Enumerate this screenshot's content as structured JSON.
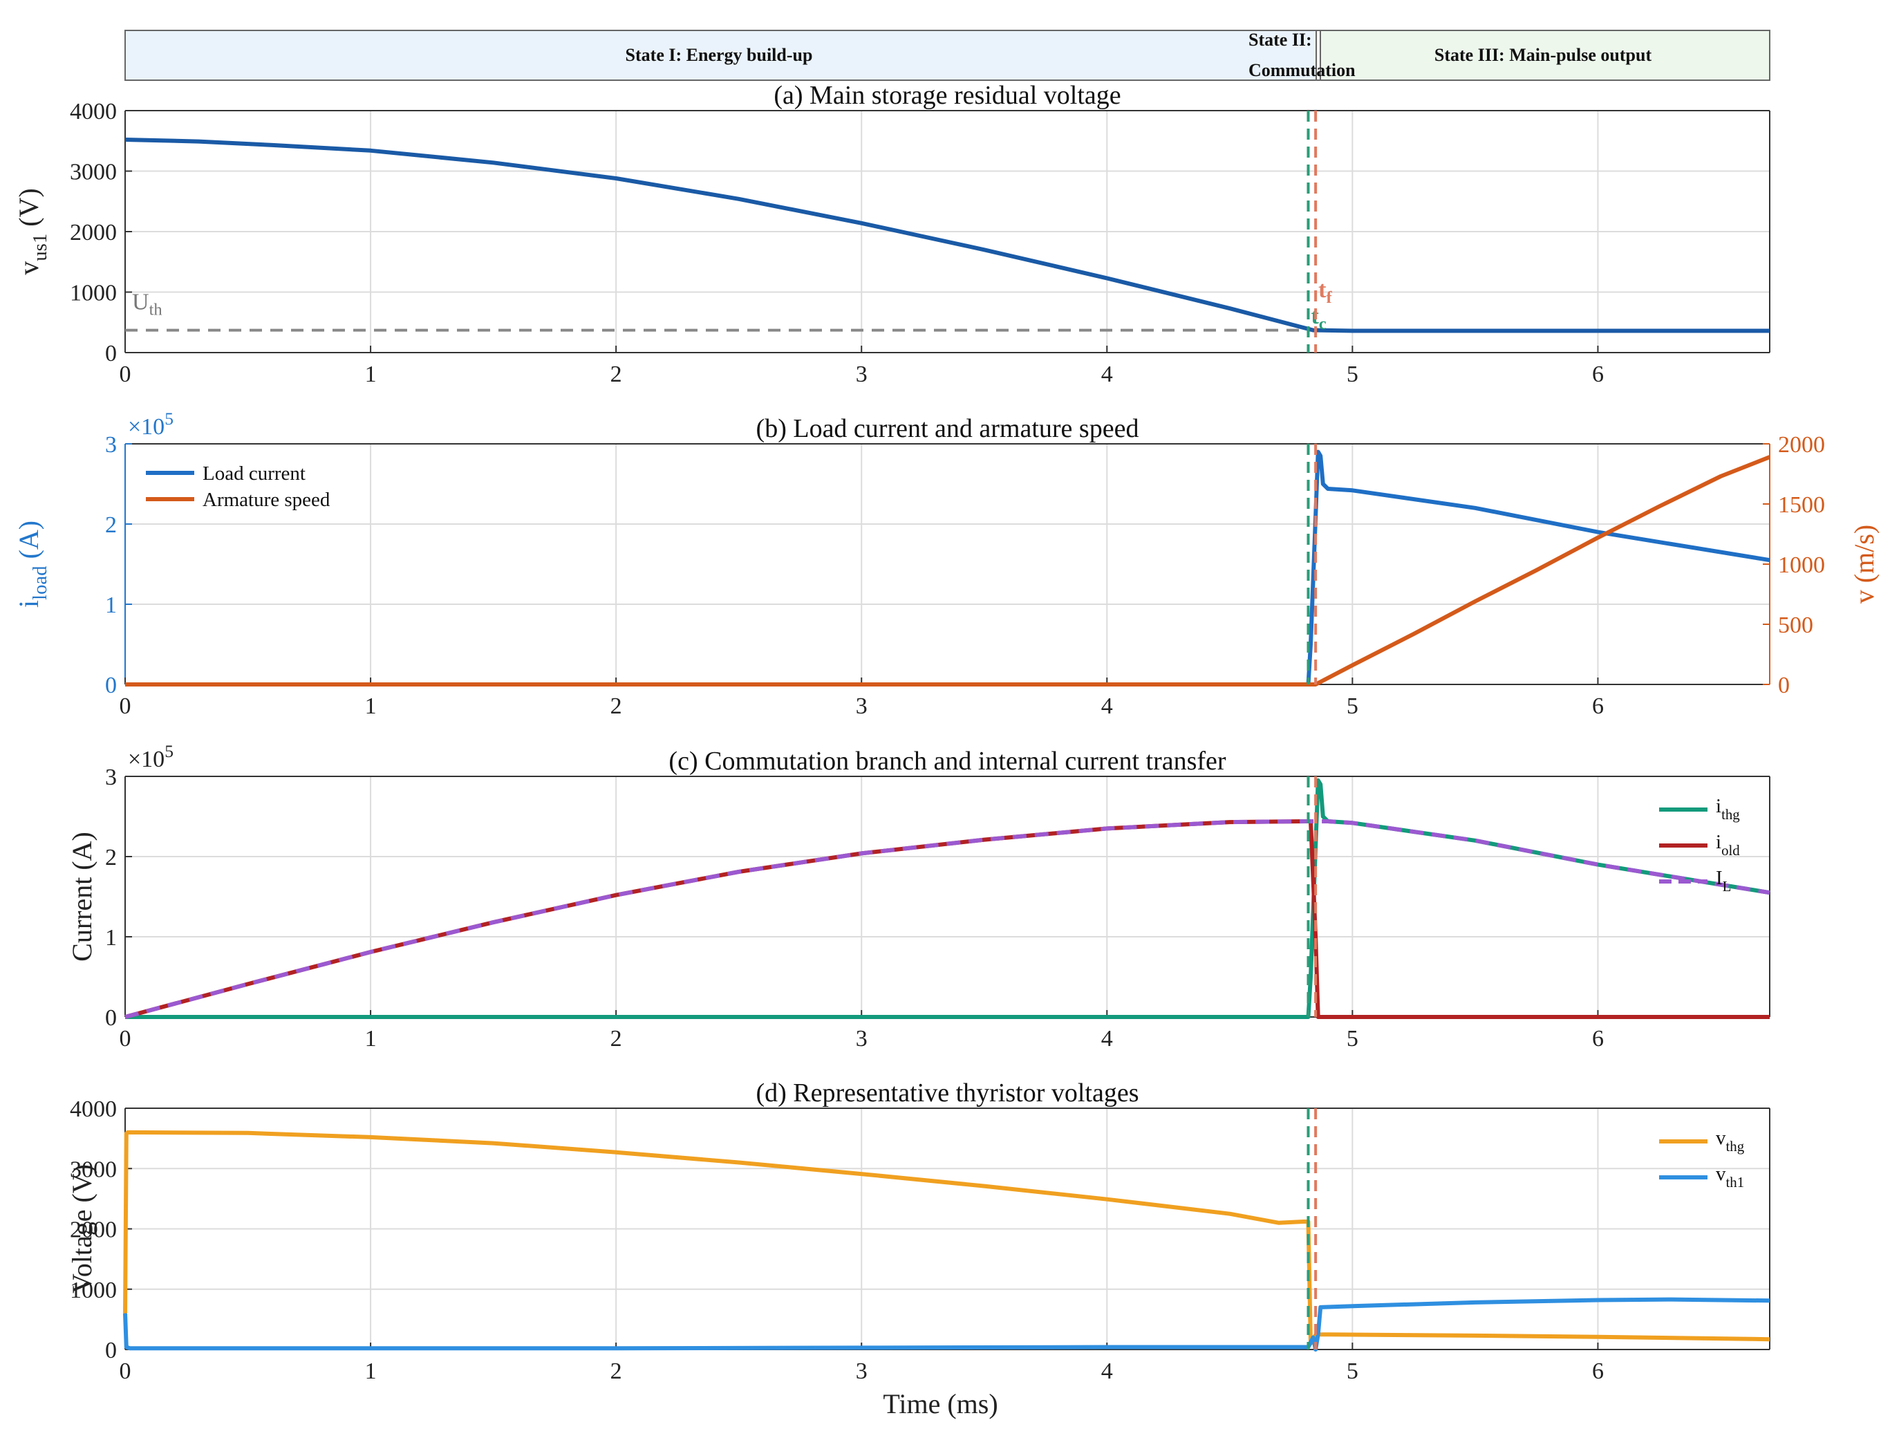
{
  "chart_data": [
    {
      "type": "line",
      "title": "(a) Main storage residual voltage",
      "xlabel": "",
      "ylabel": "v_us1 (V)",
      "ylabel_main": "v",
      "ylabel_sub": "us1",
      "ylabel_unit": " (V)",
      "xlim": [
        0,
        6.7
      ],
      "ylim": [
        0,
        4000
      ],
      "xticks": [
        "0",
        "1",
        "2",
        "3",
        "4",
        "5",
        "6"
      ],
      "yticks": [
        "0",
        "1000",
        "2000",
        "3000",
        "4000"
      ],
      "grid": true,
      "series": [
        {
          "color": "#1a5aa6",
          "x": [
            0,
            0.3,
            0.6,
            1.0,
            1.5,
            2.0,
            2.5,
            3.0,
            3.5,
            4.0,
            4.5,
            4.84,
            5.0,
            5.5,
            6.0,
            6.7
          ],
          "y": [
            3520,
            3490,
            3430,
            3340,
            3140,
            2880,
            2540,
            2140,
            1700,
            1230,
            730,
            370,
            360,
            360,
            360,
            360
          ]
        }
      ],
      "threshold": {
        "label": "U",
        "label_sub": "th",
        "value": 370,
        "color": "#888888"
      },
      "markers": [
        {
          "label": "t",
          "label_sub": "c",
          "x": 4.82,
          "color": "#2a9d78"
        },
        {
          "label": "t",
          "label_sub": "f",
          "x": 4.85,
          "color": "#e07a5f"
        }
      ]
    },
    {
      "type": "line",
      "title": "(b) Load current and armature speed",
      "xlabel": "",
      "ylabel": "i_load (A)",
      "ylabel_main": "i",
      "ylabel_sub": "load",
      "ylabel_unit": " (A)",
      "y2label": "v (m/s)",
      "xlim": [
        0,
        6.7
      ],
      "ylim": [
        0,
        3
      ],
      "y2lim": [
        0,
        2000
      ],
      "y_exponent_base": "×10",
      "y_exponent_power": "5",
      "xticks": [
        "0",
        "1",
        "2",
        "3",
        "4",
        "5",
        "6"
      ],
      "yticks": [
        "0",
        "1",
        "2",
        "3"
      ],
      "y2ticks": [
        "0",
        "500",
        "1000",
        "1500",
        "2000"
      ],
      "grid": true,
      "legend_position": "top-left",
      "left_axis_color": "#2277cc",
      "right_axis_color": "#d45a1a",
      "series": [
        {
          "name": "Load current",
          "color": "#1f6fc5",
          "axis": "left",
          "x": [
            0,
            4.82,
            4.83,
            4.86,
            4.87,
            4.88,
            4.9,
            5.0,
            5.5,
            6.0,
            6.7
          ],
          "y": [
            0,
            0,
            0.5,
            2.9,
            2.85,
            2.5,
            2.44,
            2.42,
            2.2,
            1.9,
            1.55
          ]
        },
        {
          "name": "Armature speed",
          "color": "#d45a1a",
          "axis": "right",
          "x": [
            0,
            4.85,
            5.0,
            5.25,
            5.5,
            5.75,
            6.0,
            6.25,
            6.5,
            6.7
          ],
          "y": [
            0,
            0,
            160,
            420,
            690,
            950,
            1220,
            1480,
            1730,
            1890
          ]
        }
      ],
      "markers": [
        {
          "x": 4.82,
          "color": "#2a9d78"
        },
        {
          "x": 4.85,
          "color": "#e07a5f"
        }
      ]
    },
    {
      "type": "line",
      "title": "(c) Commutation branch and internal current transfer",
      "xlabel": "",
      "ylabel": "Current (A)",
      "xlim": [
        0,
        6.7
      ],
      "ylim": [
        0,
        3
      ],
      "y_exponent_base": "×10",
      "y_exponent_power": "5",
      "xticks": [
        "0",
        "1",
        "2",
        "3",
        "4",
        "5",
        "6"
      ],
      "yticks": [
        "0",
        "1",
        "2",
        "3"
      ],
      "grid": true,
      "legend_position": "right",
      "series": [
        {
          "name": "i_thg",
          "label_main": "i",
          "label_sub": "thg",
          "color": "#139a7c",
          "dashed": false,
          "x": [
            0,
            4.82,
            4.83,
            4.86,
            4.87,
            4.88,
            4.9,
            5.0,
            5.5,
            6.0,
            6.7
          ],
          "y": [
            0,
            0,
            0.5,
            2.95,
            2.9,
            2.5,
            2.44,
            2.42,
            2.2,
            1.9,
            1.55
          ]
        },
        {
          "name": "i_old",
          "label_main": "i",
          "label_sub": "old",
          "color": "#b22222",
          "dashed": false,
          "x": [
            0,
            0.5,
            1.0,
            1.5,
            2.0,
            2.5,
            3.0,
            3.5,
            4.0,
            4.5,
            4.8,
            4.83,
            4.85,
            4.86,
            6.7
          ],
          "y": [
            0,
            0.41,
            0.81,
            1.18,
            1.52,
            1.81,
            2.04,
            2.21,
            2.35,
            2.43,
            2.44,
            2.44,
            1.0,
            0,
            0
          ]
        },
        {
          "name": "I_L",
          "label_main": "I",
          "label_sub": "L",
          "color": "#9b59d0",
          "dashed": true,
          "x": [
            0,
            0.5,
            1.0,
            1.5,
            2.0,
            2.5,
            3.0,
            3.5,
            4.0,
            4.5,
            4.82,
            4.9,
            5.0,
            5.5,
            6.0,
            6.7
          ],
          "y": [
            0,
            0.41,
            0.81,
            1.18,
            1.52,
            1.81,
            2.04,
            2.21,
            2.35,
            2.43,
            2.44,
            2.44,
            2.42,
            2.2,
            1.9,
            1.55
          ]
        }
      ],
      "markers": [
        {
          "x": 4.82,
          "color": "#2a9d78"
        },
        {
          "x": 4.85,
          "color": "#e07a5f"
        }
      ]
    },
    {
      "type": "line",
      "title": "(d) Representative thyristor voltages",
      "xlabel": "Time (ms)",
      "ylabel": "Voltage (V)",
      "xlim": [
        0,
        6.7
      ],
      "ylim": [
        0,
        4000
      ],
      "xticks": [
        "0",
        "1",
        "2",
        "3",
        "4",
        "5",
        "6"
      ],
      "yticks": [
        "0",
        "1000",
        "2000",
        "3000",
        "4000"
      ],
      "grid": true,
      "legend_position": "right",
      "series": [
        {
          "name": "v_thg",
          "label_main": "v",
          "label_sub": "thg",
          "color": "#f0a020",
          "x": [
            0,
            0.005,
            0.01,
            0.5,
            1.0,
            1.5,
            2.0,
            2.5,
            3.0,
            3.5,
            4.0,
            4.5,
            4.7,
            4.8,
            4.82,
            4.83,
            4.85,
            4.86,
            4.9,
            5.5,
            6.0,
            6.7
          ],
          "y": [
            600,
            3580,
            3600,
            3590,
            3520,
            3420,
            3270,
            3100,
            2910,
            2710,
            2490,
            2250,
            2100,
            2120,
            2120,
            100,
            240,
            250,
            250,
            230,
            210,
            170
          ]
        },
        {
          "name": "v_th1",
          "label_main": "v",
          "label_sub": "th1",
          "color": "#2f8fe0",
          "x": [
            0,
            0.005,
            0.02,
            1.0,
            2.0,
            3.0,
            4.0,
            4.82,
            4.84,
            4.85,
            4.86,
            4.87,
            5.0,
            5.5,
            6.0,
            6.3,
            6.7
          ],
          "y": [
            600,
            40,
            20,
            20,
            20,
            30,
            40,
            40,
            200,
            0,
            250,
            700,
            720,
            780,
            820,
            830,
            810
          ]
        }
      ],
      "markers": [
        {
          "x": 4.82,
          "color": "#2a9d78"
        },
        {
          "x": 4.85,
          "color": "#e07a5f"
        }
      ]
    }
  ],
  "states": [
    {
      "label": "State I: Energy build-up",
      "color": "#eaf3fb"
    },
    {
      "label_line1": "State II:",
      "label_line2": "Commutation",
      "color": "#f7f7f7"
    },
    {
      "label": "State III: Main-pulse output",
      "color": "#edf7ec"
    }
  ]
}
